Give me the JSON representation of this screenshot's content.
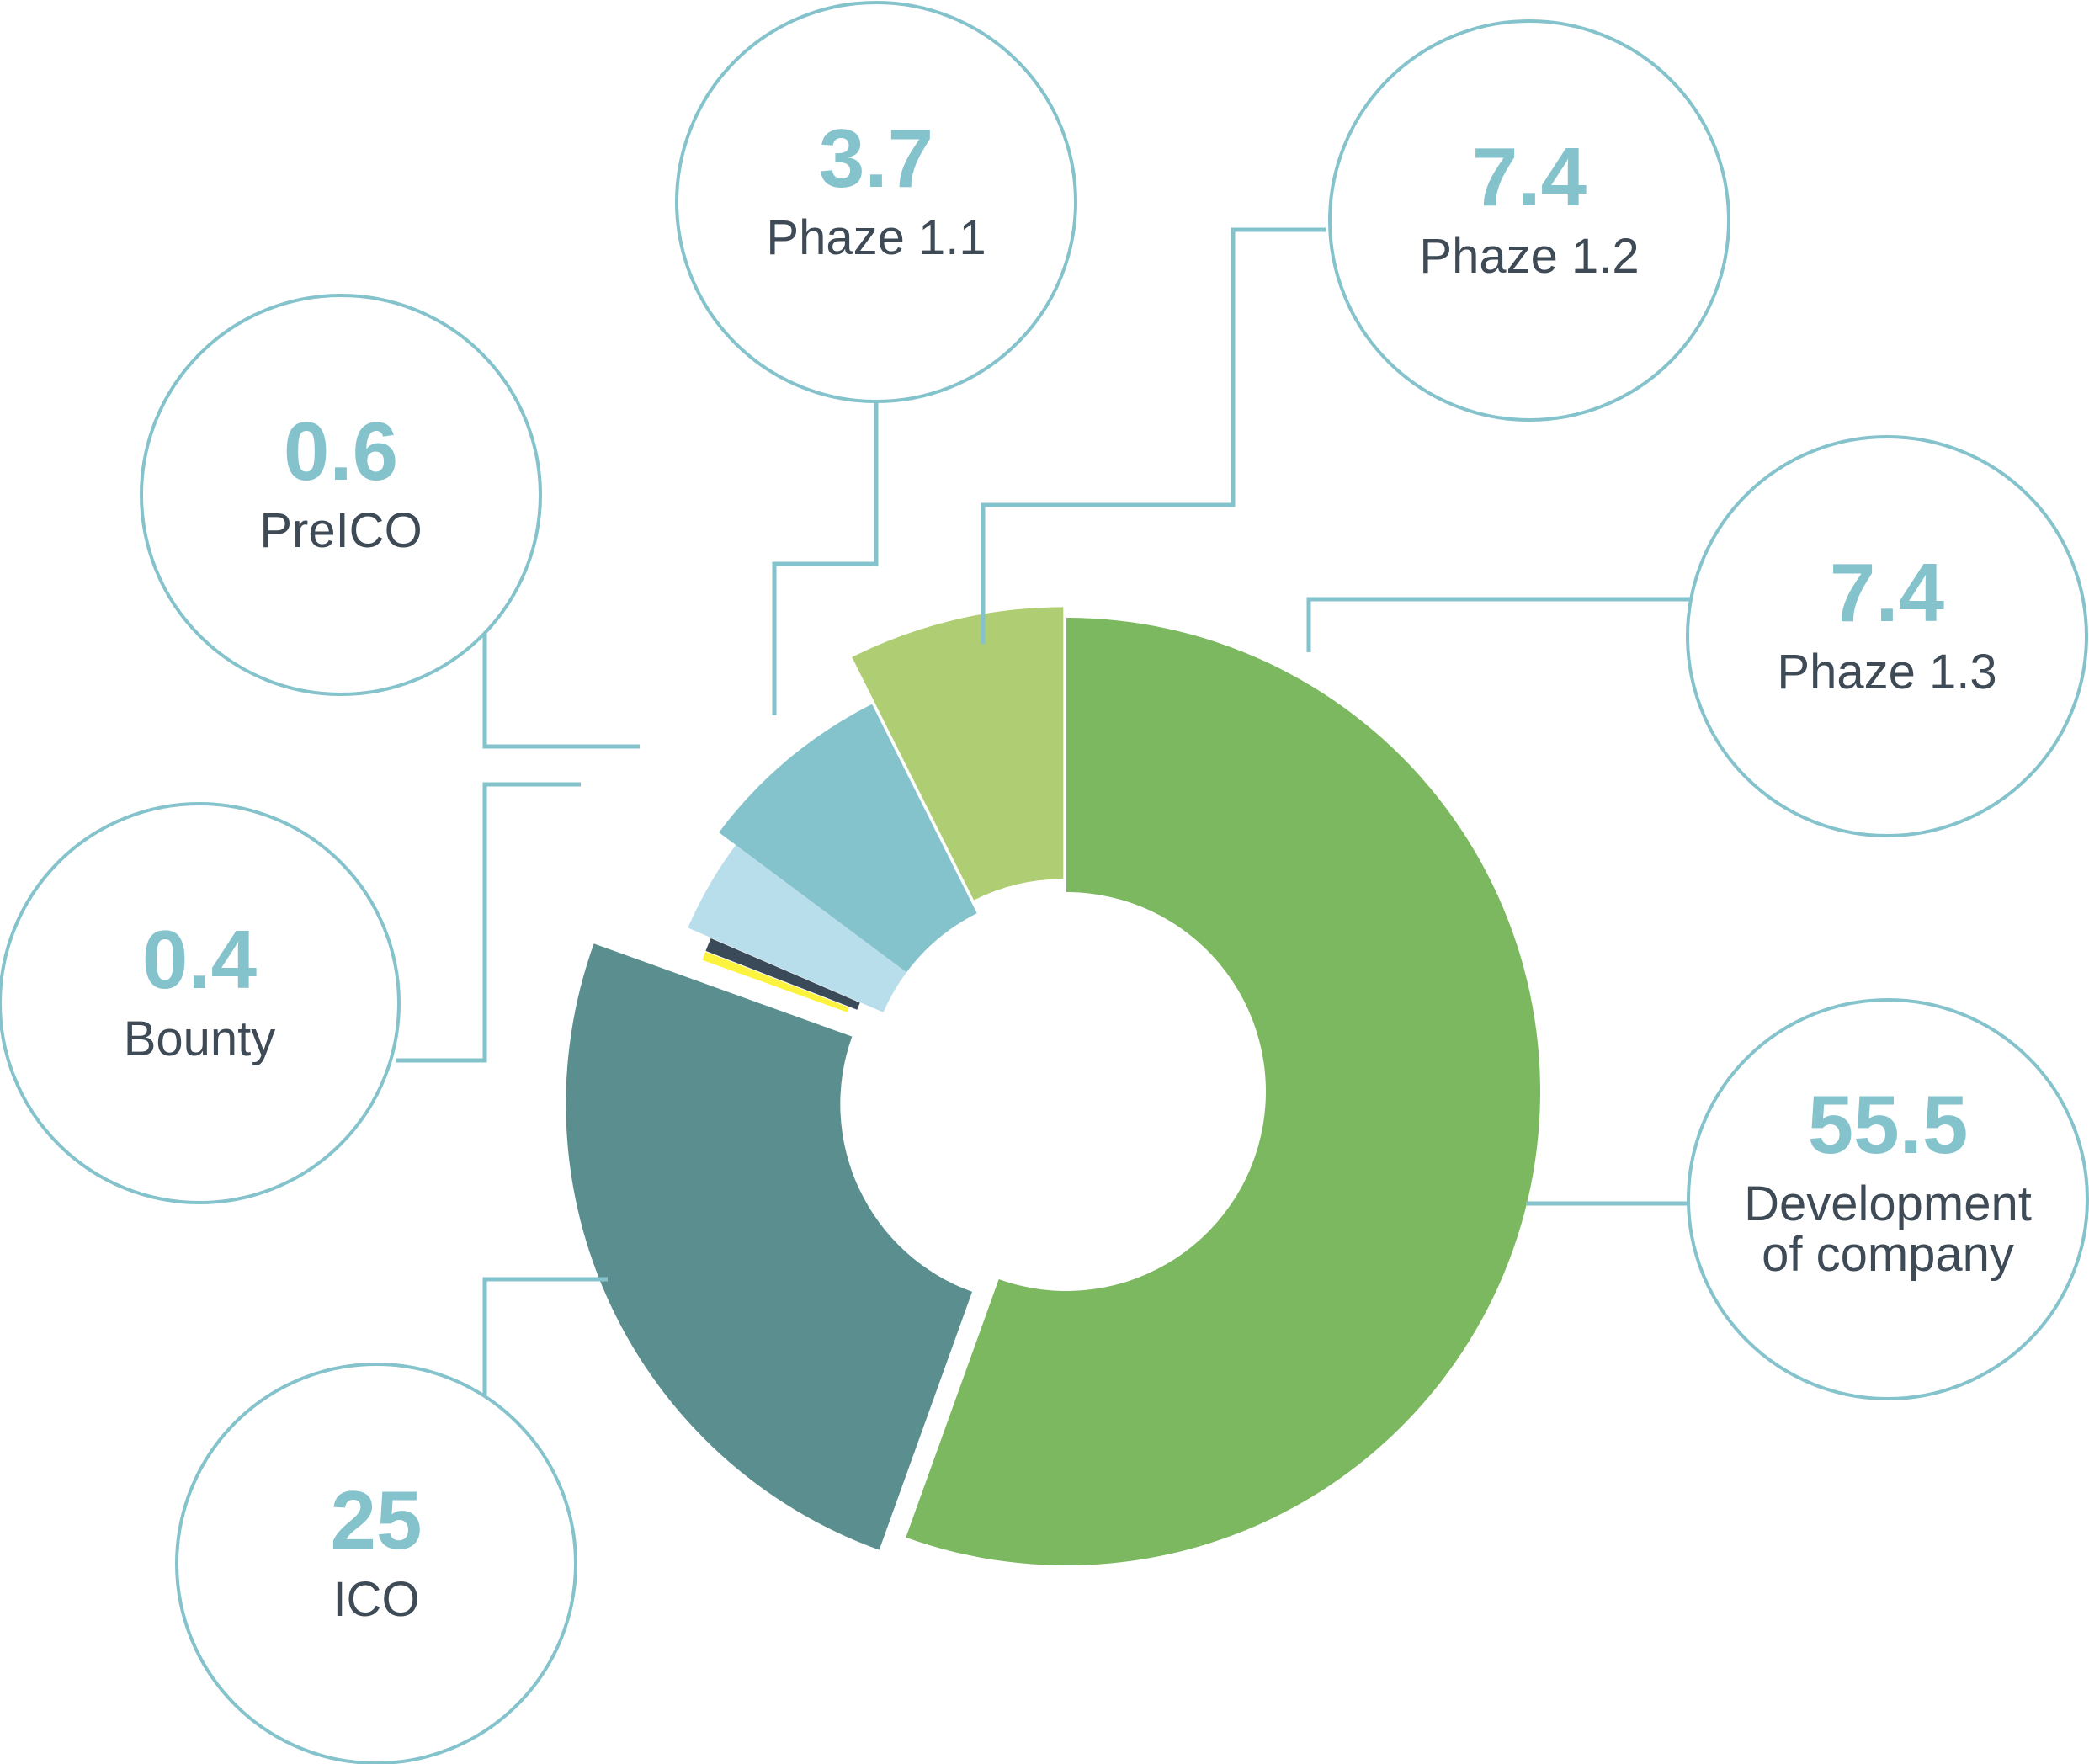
{
  "chart_data": {
    "type": "pie",
    "variant": "donut-exploded",
    "title": "",
    "colors": {
      "bubble_stroke": "#85c3cc",
      "value_text": "#85c3cc",
      "label_text": "#3e4a56",
      "leader_line": "#85c3cc"
    },
    "slices": [
      {
        "label": "Development of company",
        "label_lines": [
          "Development",
          "of company"
        ],
        "value": 55.5,
        "value_text": "55.5",
        "color": "#7cb85f"
      },
      {
        "label": "ICO",
        "label_lines": [
          "ICO"
        ],
        "value": 25,
        "value_text": "25",
        "color": "#5b8f8f"
      },
      {
        "label": "Bounty",
        "label_lines": [
          "Bounty"
        ],
        "value": 0.4,
        "value_text": "0.4",
        "color": "#fcf33f"
      },
      {
        "label": "PreICO",
        "label_lines": [
          "PreICO"
        ],
        "value": 0.6,
        "value_text": "0.6",
        "color": "#3b4a59"
      },
      {
        "label": "Phaze 1.1",
        "label_lines": [
          "Phaze 1.1"
        ],
        "value": 3.7,
        "value_text": "3.7",
        "color": "#b8ddeb"
      },
      {
        "label": "Phaze 1.2",
        "label_lines": [
          "Phaze 1.2"
        ],
        "value": 7.4,
        "value_text": "7.4",
        "color": "#85c3cc"
      },
      {
        "label": "Phaze 1.3",
        "label_lines": [
          "Phaze 1.3"
        ],
        "value": 7.4,
        "value_text": "7.4",
        "color": "#afcd73"
      }
    ]
  }
}
